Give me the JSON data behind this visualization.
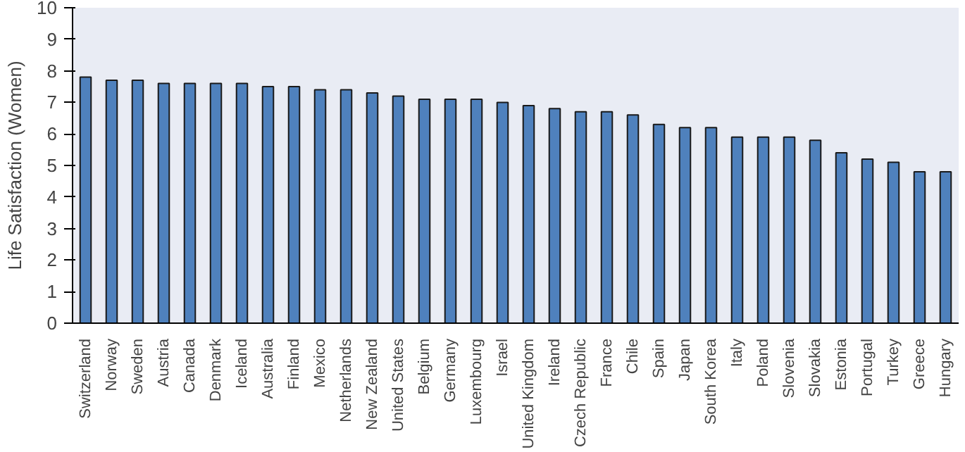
{
  "chart_data": {
    "type": "bar",
    "ylabel": "Life Satisfaction (Women)",
    "categories": [
      "Switzerland",
      "Norway",
      "Sweden",
      "Austria",
      "Canada",
      "Denmark",
      "Iceland",
      "Australia",
      "Finland",
      "Mexico",
      "Netherlands",
      "New Zealand",
      "United States",
      "Belgium",
      "Germany",
      "Luxembourg",
      "Israel",
      "United Kingdom",
      "Ireland",
      "Czech Republic",
      "France",
      "Chile",
      "Spain",
      "Japan",
      "South Korea",
      "Italy",
      "Poland",
      "Slovenia",
      "Slovakia",
      "Estonia",
      "Portugal",
      "Turkey",
      "Greece",
      "Hungary"
    ],
    "values": [
      7.8,
      7.7,
      7.7,
      7.6,
      7.6,
      7.6,
      7.6,
      7.5,
      7.5,
      7.4,
      7.4,
      7.3,
      7.2,
      7.1,
      7.1,
      7.1,
      7.0,
      6.9,
      6.8,
      6.7,
      6.7,
      6.6,
      6.3,
      6.2,
      6.2,
      5.9,
      5.9,
      5.9,
      5.8,
      5.4,
      5.2,
      5.1,
      4.8,
      4.8
    ],
    "color": "#4f81bd",
    "ylim": [
      0,
      10
    ],
    "yticks": [
      0,
      1,
      2,
      3,
      4,
      5,
      6,
      7,
      8,
      9,
      10
    ],
    "grid": false
  }
}
